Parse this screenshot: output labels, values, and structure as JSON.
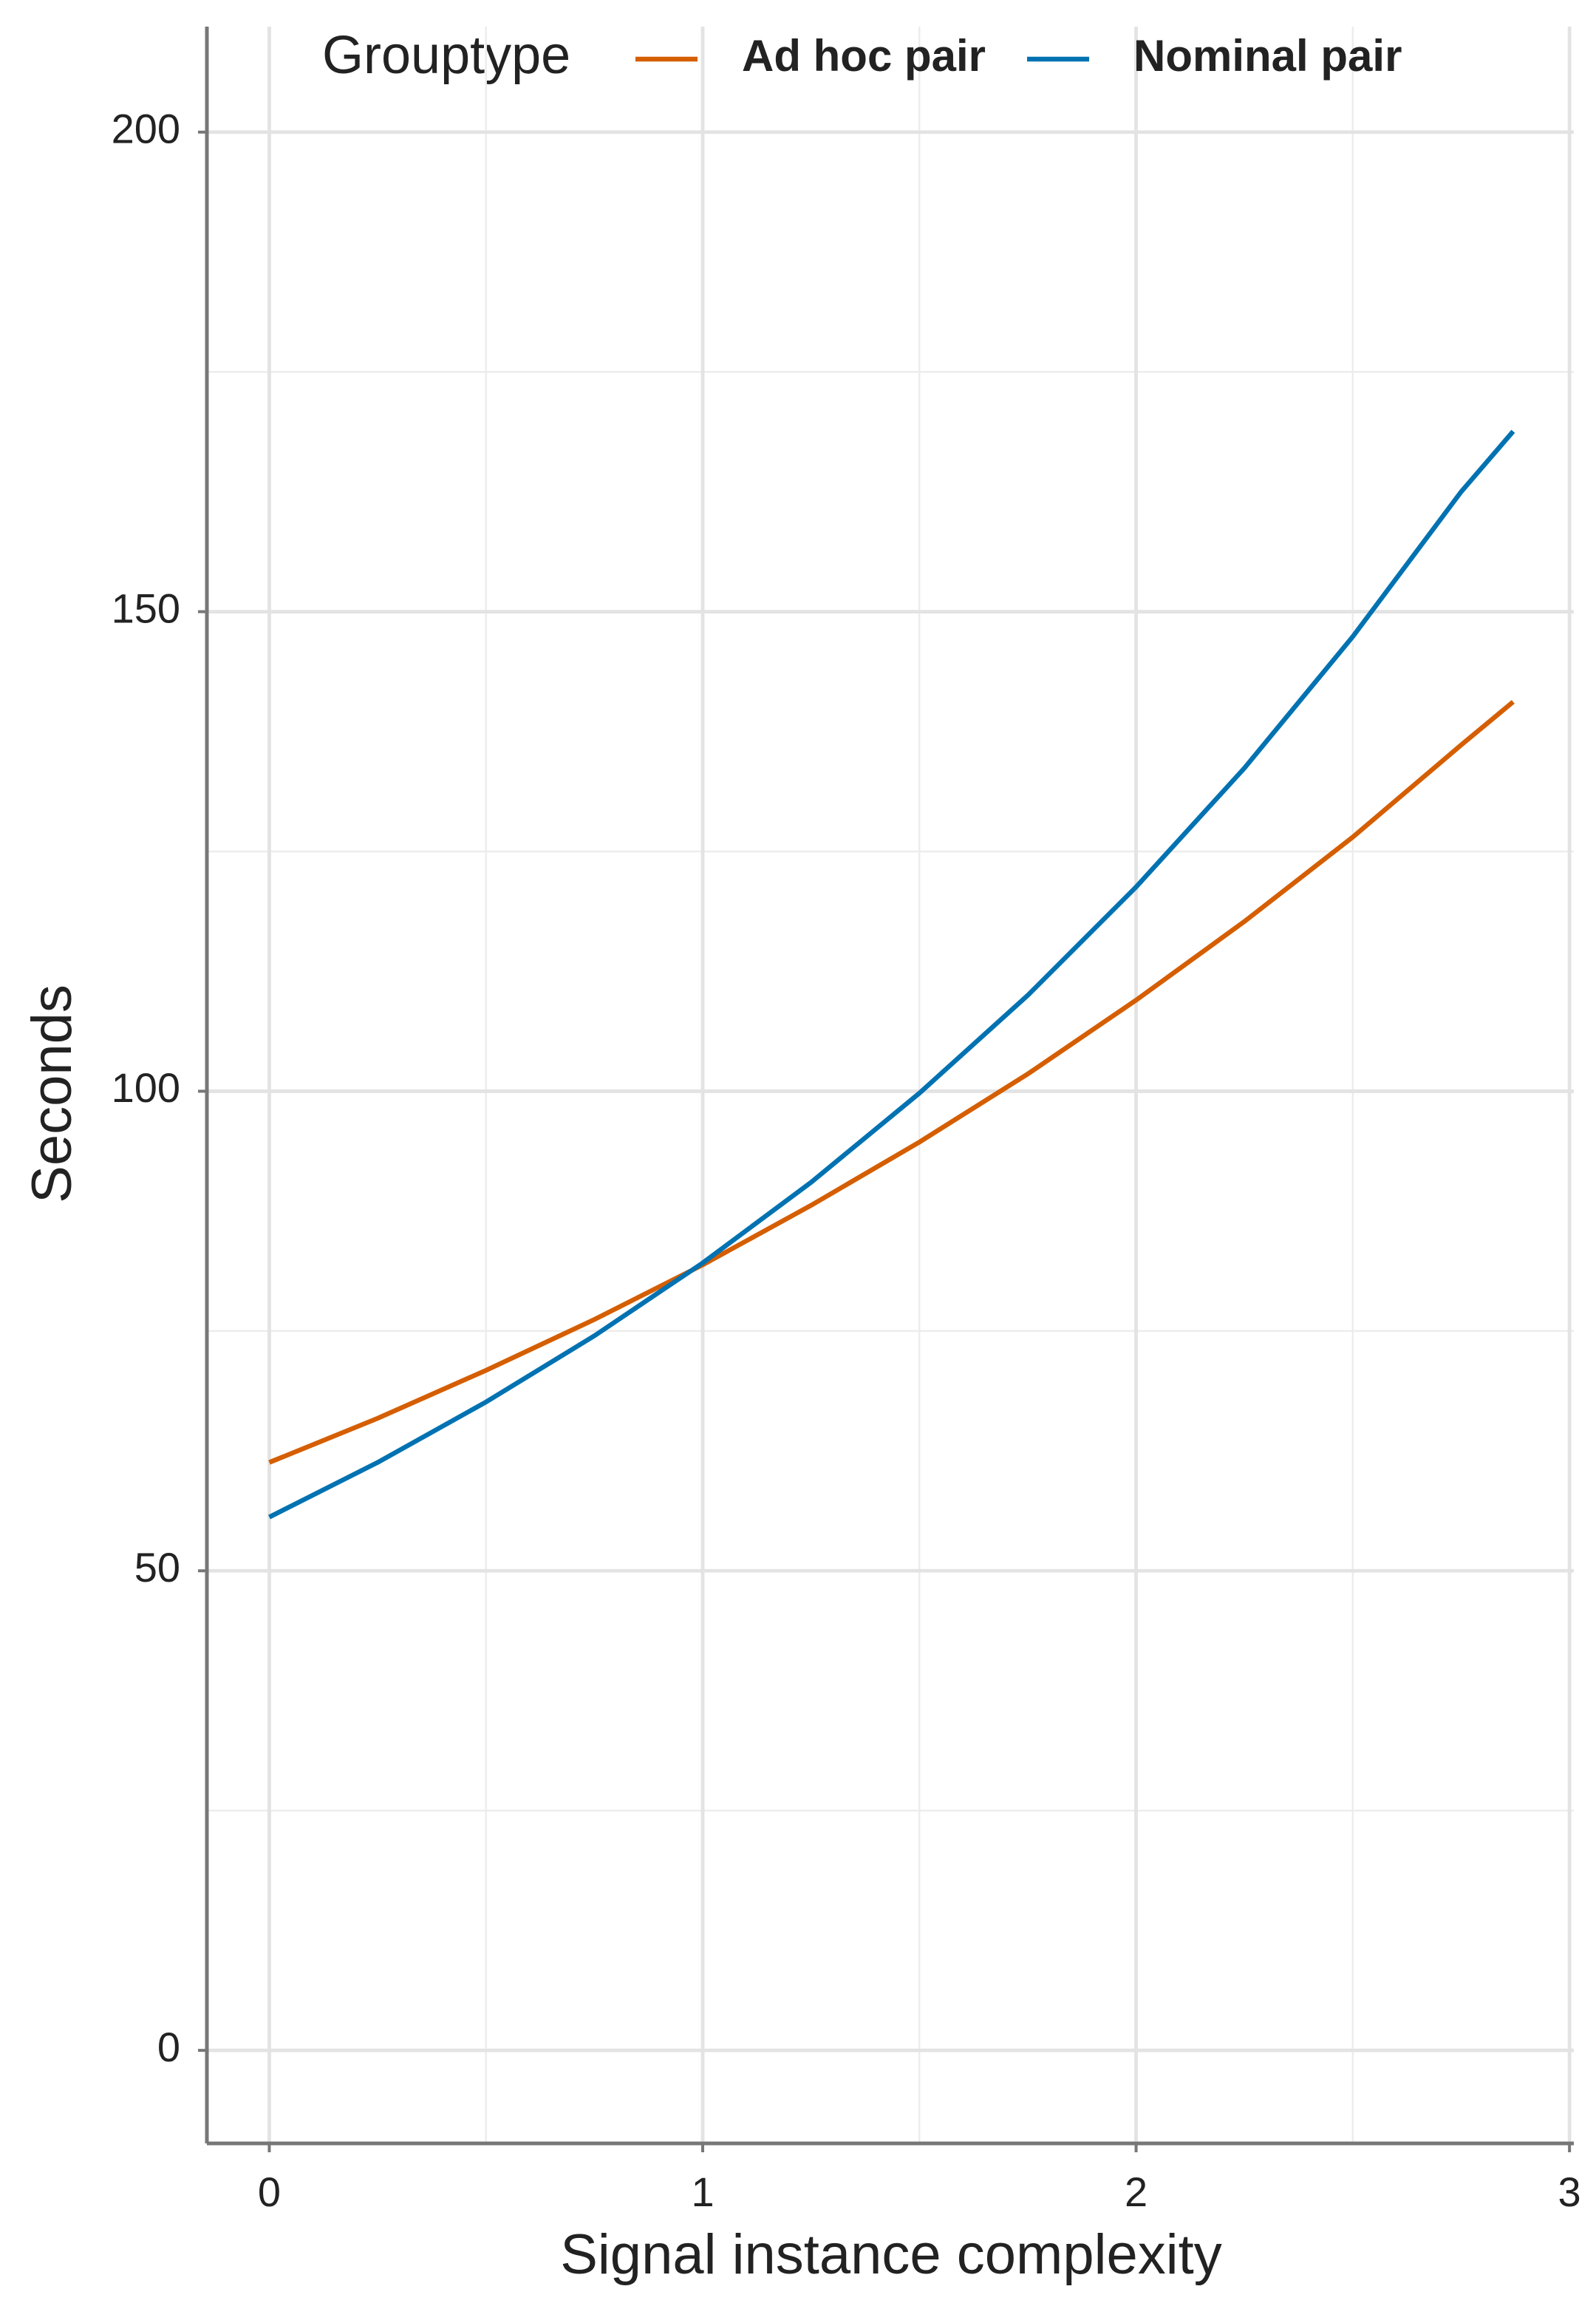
{
  "chart_data": {
    "type": "line",
    "x_label": "Signal instance complexity",
    "y_label": "Seconds",
    "legend_title": "Grouptype",
    "legend_position": "top",
    "x": [
      0,
      0.25,
      0.5,
      0.75,
      1,
      1.25,
      1.5,
      1.75,
      2,
      2.25,
      2.5,
      2.75,
      2.87
    ],
    "series": [
      {
        "name": "Ad hoc pair",
        "color": "#d55e00",
        "values": [
          61.3,
          65.9,
          70.9,
          76.2,
          81.9,
          88.1,
          94.7,
          101.8,
          109.5,
          117.7,
          126.5,
          136.1,
          140.6
        ]
      },
      {
        "name": "Nominal pair",
        "color": "#0072b2",
        "values": [
          55.6,
          61.3,
          67.6,
          74.5,
          82.1,
          90.5,
          99.8,
          110.0,
          121.3,
          133.7,
          147.4,
          162.5,
          168.8
        ]
      }
    ],
    "xlim": [
      -0.144,
      3.01
    ],
    "ylim": [
      -9.7,
      211
    ],
    "xticks": [
      0,
      1,
      2,
      3
    ],
    "yticks": [
      0,
      50,
      100,
      150,
      200
    ],
    "x_minor_grid": [
      0.5,
      1.5,
      2.5
    ],
    "y_minor_grid": [
      25,
      75,
      125,
      175
    ],
    "grid": true
  }
}
